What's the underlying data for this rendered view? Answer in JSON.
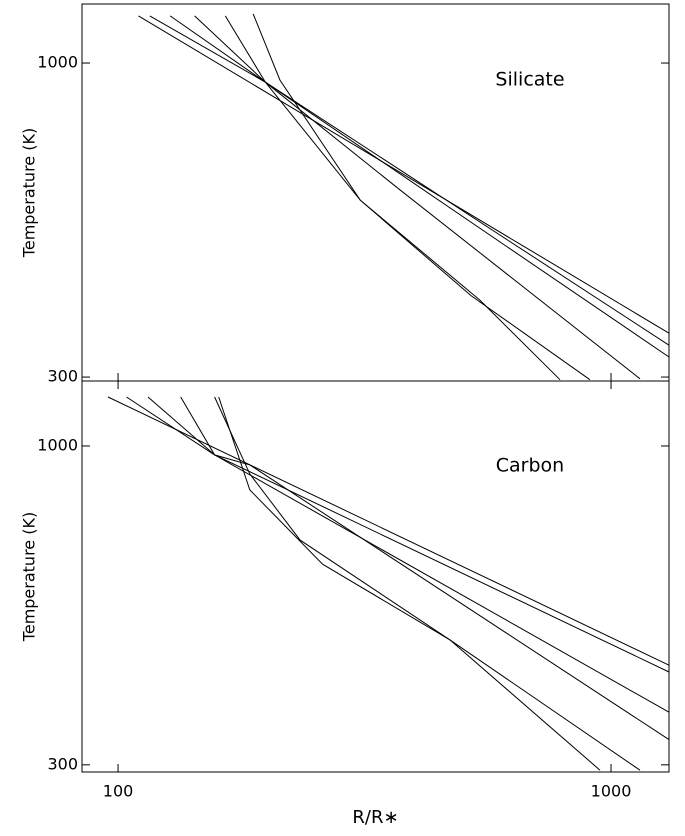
{
  "chart_data": [
    {
      "type": "line",
      "annotation": "Silicate",
      "ylabel": "Temperature (K)",
      "xscale": "log",
      "yscale": "log",
      "xlim": [
        84.5,
        1311
      ],
      "ylim": [
        295.5,
        1254
      ],
      "yticks": [
        300,
        1000
      ],
      "series": [
        {
          "color": "#000000",
          "x": [
            110,
            1311
          ],
          "values": [
            1198,
            355
          ]
        },
        {
          "color": "#000000",
          "x": [
            116,
            199,
            1311
          ],
          "values": [
            1198,
            929,
            339
          ]
        },
        {
          "color": "#000000",
          "x": [
            127.5,
            199,
            1311
          ],
          "values": [
            1198,
            929,
            324
          ]
        },
        {
          "color": "#000000",
          "x": [
            143,
            199,
            373,
            1145
          ],
          "values": [
            1198,
            929,
            615,
            298
          ]
        },
        {
          "color": "#000000",
          "x": [
            165,
            199,
            310,
            542,
            788
          ],
          "values": [
            1198,
            929,
            591,
            403,
            297
          ]
        },
        {
          "color": "#000000",
          "x": [
            188,
            213,
            310,
            520,
            906
          ],
          "values": [
            1207,
            937,
            591,
            410,
            297
          ]
        }
      ]
    },
    {
      "type": "line",
      "annotation": "Carbon",
      "ylabel": "Temperature (K)",
      "xlabel": "R/R∗",
      "xscale": "log",
      "yscale": "log",
      "xlim": [
        84.5,
        1311
      ],
      "ylim": [
        292,
        1278
      ],
      "xticks": [
        100,
        1000
      ],
      "yticks": [
        300,
        1000
      ],
      "series": [
        {
          "color": "#000000",
          "x": [
            95.4,
            1311
          ],
          "values": [
            1203,
            437
          ]
        },
        {
          "color": "#000000",
          "x": [
            104,
            157,
            1311
          ],
          "values": [
            1203,
            967,
            426
          ]
        },
        {
          "color": "#000000",
          "x": [
            115,
            157,
            1311
          ],
          "values": [
            1203,
            967,
            366
          ]
        },
        {
          "color": "#000000",
          "x": [
            134,
            157,
            185,
            1311
          ],
          "values": [
            1203,
            967,
            931,
            330
          ]
        },
        {
          "color": "#000000",
          "x": [
            157,
            185,
            234,
            471,
            1145
          ],
          "values": [
            1203,
            900,
            701,
            481,
            294
          ]
        },
        {
          "color": "#000000",
          "x": [
            160,
            185,
            260,
            471,
            950
          ],
          "values": [
            1203,
            847,
            640,
            481,
            294
          ]
        }
      ]
    }
  ]
}
